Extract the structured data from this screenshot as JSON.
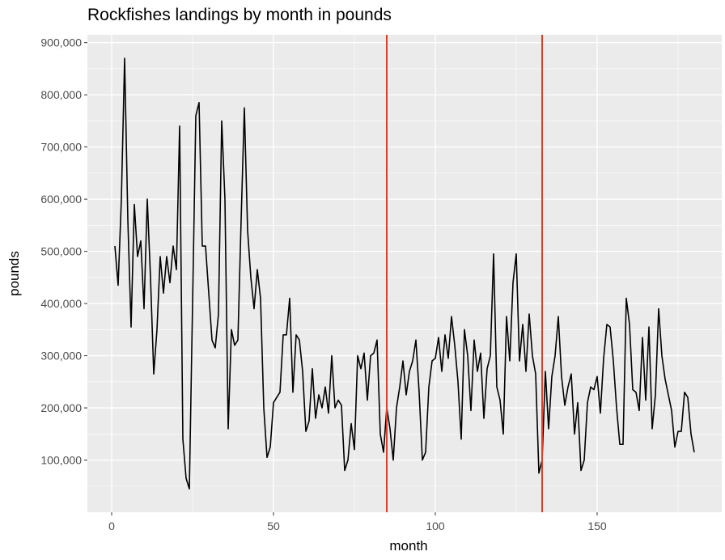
{
  "chart_data": {
    "type": "line",
    "title": "Rockfishes landings by month in pounds",
    "xlabel": "month",
    "ylabel": "pounds",
    "xlim": [
      -7.5,
      188.5
    ],
    "ylim": [
      0,
      915000
    ],
    "x_ticks": [
      0,
      50,
      100,
      150
    ],
    "x_tick_labels": [
      "0",
      "50",
      "100",
      "150"
    ],
    "y_ticks": [
      100000,
      200000,
      300000,
      400000,
      500000,
      600000,
      700000,
      800000,
      900000
    ],
    "y_tick_labels": [
      "100,000",
      "200,000",
      "300,000",
      "400,000",
      "500,000",
      "600,000",
      "700,000",
      "800,000",
      "900,000"
    ],
    "grid": true,
    "background": "ggplot2 grey panel",
    "colors": {
      "panel": "#ebebeb",
      "grid": "#ffffff",
      "line": "#000000",
      "vline": "#d9412b"
    },
    "vlines": [
      85,
      133
    ],
    "series": [
      {
        "name": "",
        "x": [
          1,
          2,
          3,
          4,
          5,
          6,
          7,
          8,
          9,
          10,
          11,
          12,
          13,
          14,
          15,
          16,
          17,
          18,
          19,
          20,
          21,
          22,
          23,
          24,
          25,
          26,
          27,
          28,
          29,
          30,
          31,
          32,
          33,
          34,
          35,
          36,
          37,
          38,
          39,
          40,
          41,
          42,
          43,
          44,
          45,
          46,
          47,
          48,
          49,
          50,
          51,
          52,
          53,
          54,
          55,
          56,
          57,
          58,
          59,
          60,
          61,
          62,
          63,
          64,
          65,
          66,
          67,
          68,
          69,
          70,
          71,
          72,
          73,
          74,
          75,
          76,
          77,
          78,
          79,
          80,
          81,
          82,
          83,
          84,
          85,
          86,
          87,
          88,
          89,
          90,
          91,
          92,
          93,
          94,
          95,
          96,
          97,
          98,
          99,
          100,
          101,
          102,
          103,
          104,
          105,
          106,
          107,
          108,
          109,
          110,
          111,
          112,
          113,
          114,
          115,
          116,
          117,
          118,
          119,
          120,
          121,
          122,
          123,
          124,
          125,
          126,
          127,
          128,
          129,
          130,
          131,
          132,
          133,
          134,
          135,
          136,
          137,
          138,
          139,
          140,
          141,
          142,
          143,
          144,
          145,
          146,
          147,
          148,
          149,
          150,
          151,
          152,
          153,
          154,
          155,
          156,
          157,
          158,
          159,
          160,
          161,
          162,
          163,
          164,
          165,
          166,
          167,
          168,
          169,
          170,
          171,
          172,
          173,
          174,
          175,
          176,
          177,
          178,
          179,
          180
        ],
        "values": [
          510000,
          435000,
          600000,
          870000,
          560000,
          355000,
          590000,
          490000,
          520000,
          390000,
          600000,
          450000,
          265000,
          350000,
          490000,
          420000,
          490000,
          440000,
          510000,
          465000,
          740000,
          140000,
          65000,
          45000,
          400000,
          760000,
          785000,
          510000,
          510000,
          420000,
          330000,
          315000,
          380000,
          750000,
          600000,
          160000,
          350000,
          320000,
          330000,
          560000,
          775000,
          540000,
          450000,
          390000,
          465000,
          410000,
          200000,
          105000,
          125000,
          210000,
          220000,
          230000,
          340000,
          340000,
          410000,
          230000,
          340000,
          330000,
          270000,
          155000,
          175000,
          275000,
          180000,
          225000,
          200000,
          240000,
          190000,
          300000,
          200000,
          215000,
          205000,
          80000,
          100000,
          170000,
          120000,
          300000,
          275000,
          305000,
          215000,
          300000,
          305000,
          330000,
          150000,
          115000,
          200000,
          160000,
          100000,
          200000,
          240000,
          290000,
          225000,
          270000,
          290000,
          330000,
          230000,
          100000,
          115000,
          240000,
          290000,
          295000,
          335000,
          270000,
          340000,
          295000,
          375000,
          320000,
          250000,
          140000,
          350000,
          300000,
          195000,
          330000,
          270000,
          305000,
          180000,
          275000,
          300000,
          495000,
          240000,
          215000,
          150000,
          375000,
          290000,
          440000,
          495000,
          290000,
          360000,
          270000,
          380000,
          300000,
          265000,
          75000,
          100000,
          270000,
          160000,
          260000,
          300000,
          375000,
          260000,
          205000,
          240000,
          265000,
          150000,
          210000,
          80000,
          100000,
          210000,
          240000,
          235000,
          260000,
          190000,
          295000,
          360000,
          355000,
          290000,
          200000,
          130000,
          130000,
          410000,
          360000,
          235000,
          230000,
          195000,
          335000,
          215000,
          355000,
          160000,
          225000,
          390000,
          300000,
          255000,
          225000,
          195000,
          125000,
          155000,
          155000,
          230000,
          220000,
          150000,
          115000
        ]
      }
    ]
  }
}
